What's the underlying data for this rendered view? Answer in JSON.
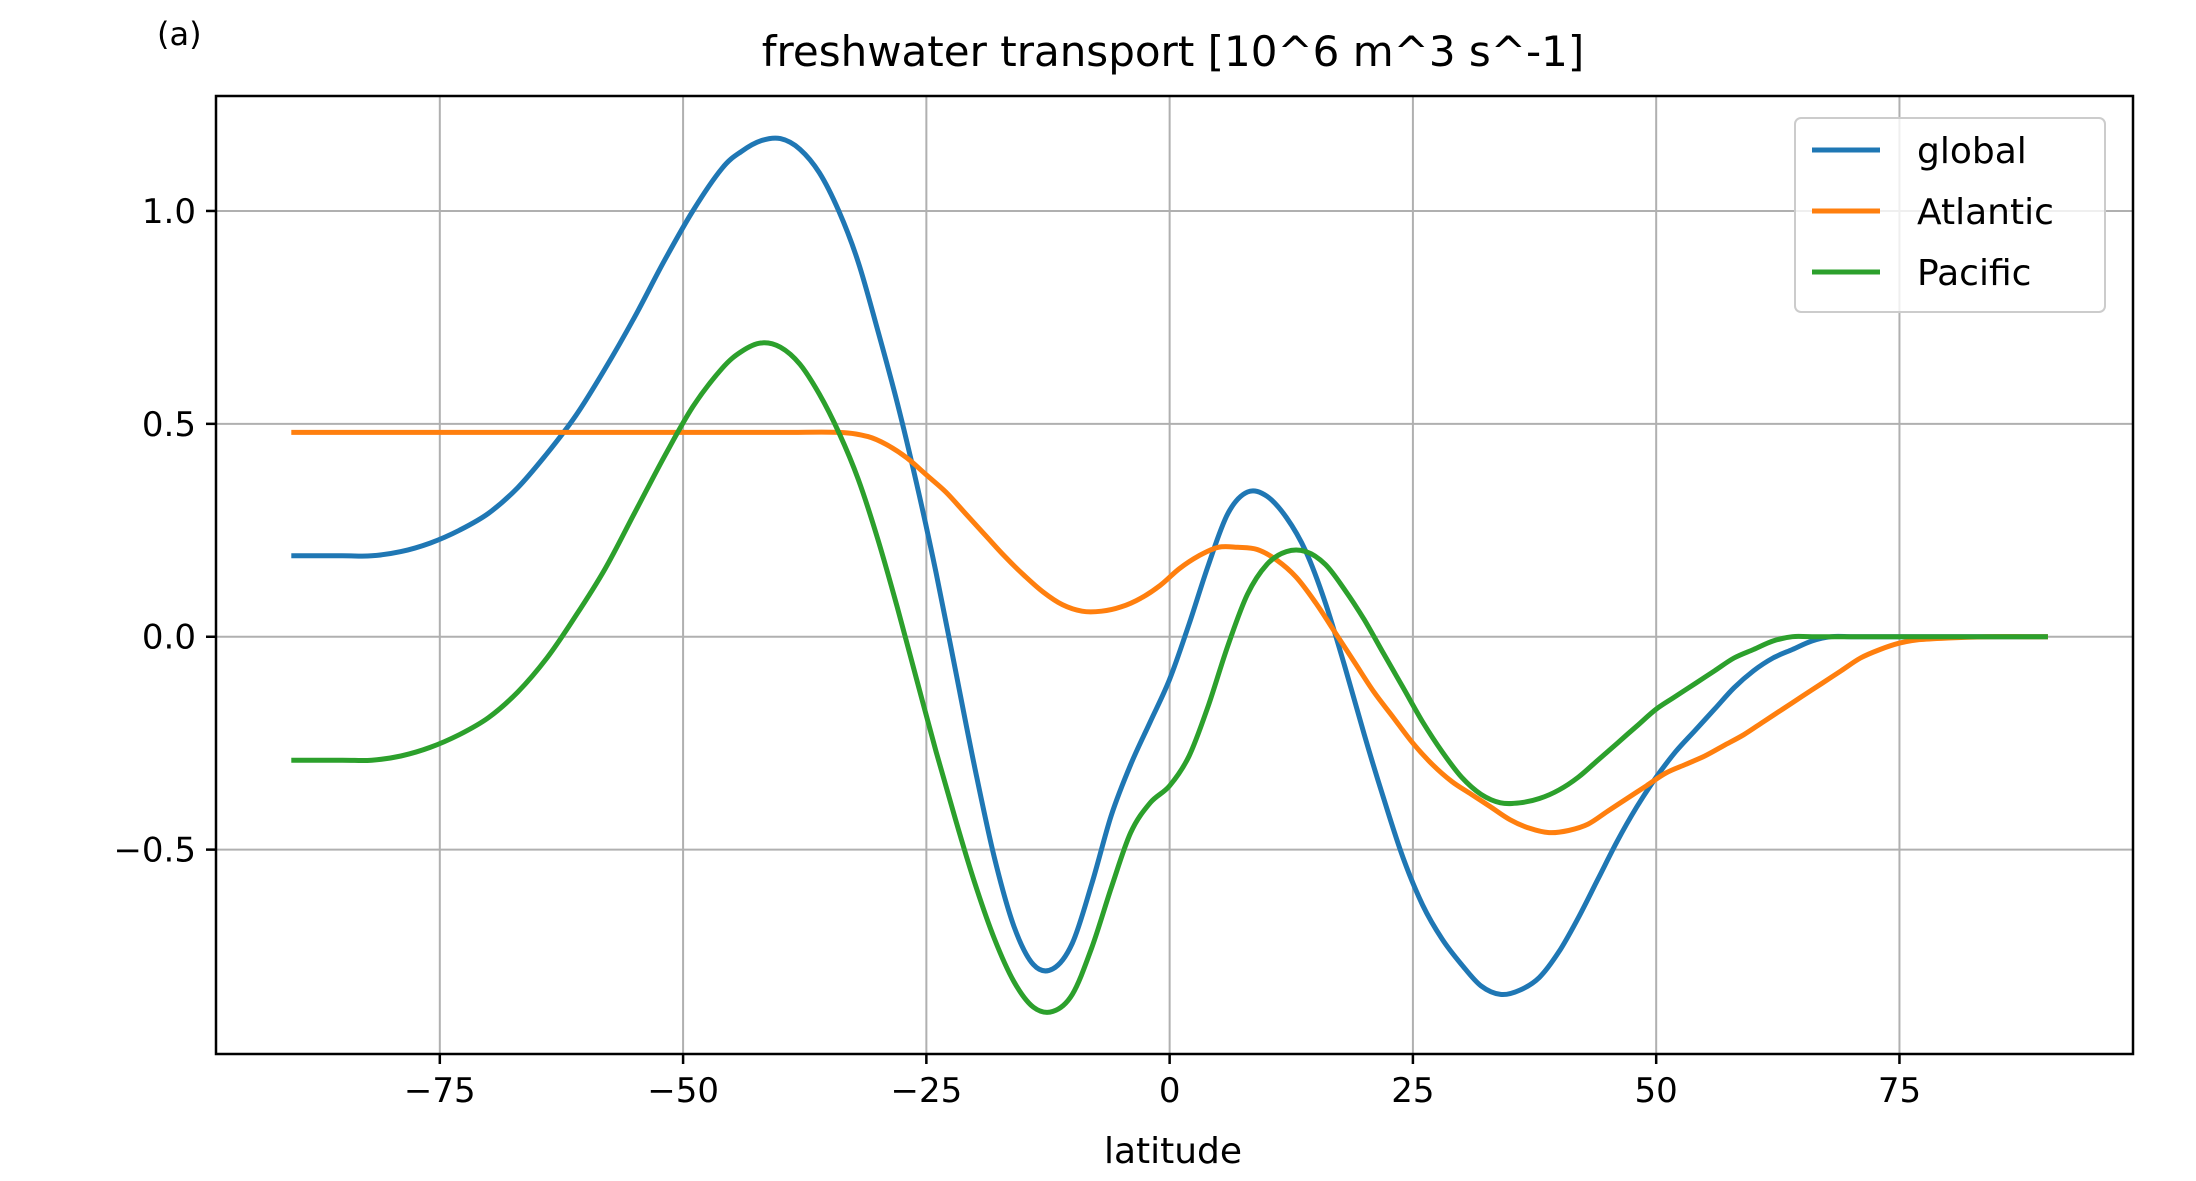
{
  "panel_label": "(a)",
  "chart_data": {
    "type": "line",
    "title": "freshwater transport [10^6 m^3 s^-1]",
    "xlabel": "latitude",
    "ylabel": "",
    "xlim": [
      -98,
      99
    ],
    "ylim": [
      -0.98,
      1.27
    ],
    "xticks": [
      -75,
      -50,
      -25,
      0,
      25,
      50,
      75
    ],
    "xtick_labels": [
      "−75",
      "−50",
      "−25",
      "0",
      "25",
      "50",
      "75"
    ],
    "yticks": [
      -0.5,
      0.0,
      0.5,
      1.0
    ],
    "ytick_labels": [
      "−0.5",
      "0.0",
      "0.5",
      "1.0"
    ],
    "grid": true,
    "legend_position": "top-right",
    "series": [
      {
        "name": "global",
        "color": "#1f77b4",
        "x": [
          -90,
          -85,
          -82,
          -79,
          -76,
          -73,
          -70,
          -67,
          -64,
          -61,
          -58,
          -55,
          -52,
          -49,
          -46,
          -44,
          -42,
          -40,
          -38,
          -36,
          -34,
          -32,
          -30,
          -28,
          -26,
          -24,
          -22,
          -20,
          -18,
          -16,
          -14,
          -12,
          -10,
          -8,
          -6,
          -4,
          -2,
          0,
          2,
          4,
          6,
          8,
          10,
          12,
          14,
          16,
          18,
          20,
          22,
          24,
          26,
          28,
          30,
          32,
          34,
          36,
          38,
          40,
          42,
          44,
          46,
          48,
          50,
          52,
          54,
          56,
          58,
          60,
          62,
          64,
          66,
          68,
          70,
          72,
          75,
          78,
          82,
          86,
          90
        ],
        "y": [
          0.19,
          0.19,
          0.19,
          0.2,
          0.22,
          0.25,
          0.29,
          0.35,
          0.43,
          0.52,
          0.63,
          0.75,
          0.88,
          1.0,
          1.1,
          1.14,
          1.165,
          1.17,
          1.145,
          1.09,
          1.0,
          0.88,
          0.72,
          0.55,
          0.36,
          0.15,
          -0.08,
          -0.31,
          -0.52,
          -0.68,
          -0.77,
          -0.78,
          -0.72,
          -0.58,
          -0.42,
          -0.3,
          -0.2,
          -0.1,
          0.03,
          0.17,
          0.29,
          0.34,
          0.33,
          0.28,
          0.2,
          0.08,
          -0.07,
          -0.23,
          -0.38,
          -0.52,
          -0.63,
          -0.71,
          -0.77,
          -0.82,
          -0.84,
          -0.83,
          -0.8,
          -0.74,
          -0.66,
          -0.57,
          -0.48,
          -0.4,
          -0.33,
          -0.27,
          -0.22,
          -0.17,
          -0.12,
          -0.08,
          -0.05,
          -0.03,
          -0.01,
          0.0,
          0.0,
          0.0,
          0.0,
          0.0,
          0.0,
          0.0,
          0.0
        ]
      },
      {
        "name": "Atlantic",
        "color": "#ff7f0e",
        "x": [
          -90,
          -80,
          -70,
          -60,
          -50,
          -40,
          -34,
          -31,
          -29,
          -27,
          -25,
          -23,
          -21,
          -19,
          -17,
          -15,
          -13,
          -11,
          -9,
          -7,
          -5,
          -3,
          -1,
          1,
          3,
          5,
          7,
          9,
          11,
          13,
          15,
          17,
          19,
          21,
          23,
          25,
          27,
          29,
          31,
          33,
          35,
          37,
          39,
          41,
          43,
          45,
          47,
          49,
          51,
          53,
          55,
          57,
          59,
          61,
          63,
          65,
          67,
          69,
          71,
          73,
          75,
          77,
          80,
          84,
          88,
          90
        ],
        "y": [
          0.48,
          0.48,
          0.48,
          0.48,
          0.48,
          0.48,
          0.48,
          0.47,
          0.45,
          0.42,
          0.38,
          0.34,
          0.29,
          0.24,
          0.19,
          0.145,
          0.105,
          0.075,
          0.06,
          0.06,
          0.07,
          0.09,
          0.12,
          0.16,
          0.19,
          0.21,
          0.21,
          0.205,
          0.18,
          0.14,
          0.08,
          0.01,
          -0.06,
          -0.13,
          -0.19,
          -0.25,
          -0.3,
          -0.34,
          -0.37,
          -0.4,
          -0.43,
          -0.45,
          -0.46,
          -0.455,
          -0.44,
          -0.41,
          -0.38,
          -0.35,
          -0.32,
          -0.3,
          -0.28,
          -0.255,
          -0.23,
          -0.2,
          -0.17,
          -0.14,
          -0.11,
          -0.08,
          -0.05,
          -0.03,
          -0.015,
          -0.007,
          -0.003,
          0.0,
          0.0,
          0.0
        ]
      },
      {
        "name": "Pacific",
        "color": "#2ca02c",
        "x": [
          -90,
          -85,
          -82,
          -79,
          -76,
          -73,
          -70,
          -67,
          -64,
          -61,
          -58,
          -55,
          -52,
          -49,
          -46,
          -44,
          -42,
          -40,
          -38,
          -36,
          -34,
          -32,
          -30,
          -28,
          -26,
          -24,
          -22,
          -20,
          -18,
          -16,
          -14,
          -12,
          -10,
          -8,
          -6,
          -4,
          -2,
          0,
          2,
          4,
          6,
          8,
          10,
          12,
          14,
          16,
          18,
          20,
          22,
          24,
          26,
          28,
          30,
          32,
          34,
          36,
          38,
          40,
          42,
          44,
          46,
          48,
          50,
          52,
          54,
          56,
          58,
          60,
          62,
          64,
          66,
          70,
          75,
          80,
          85,
          90
        ],
        "y": [
          -0.29,
          -0.29,
          -0.29,
          -0.28,
          -0.26,
          -0.23,
          -0.19,
          -0.13,
          -0.05,
          0.05,
          0.16,
          0.29,
          0.42,
          0.54,
          0.63,
          0.67,
          0.69,
          0.68,
          0.64,
          0.57,
          0.48,
          0.37,
          0.23,
          0.07,
          -0.1,
          -0.27,
          -0.43,
          -0.58,
          -0.71,
          -0.81,
          -0.87,
          -0.88,
          -0.84,
          -0.73,
          -0.59,
          -0.46,
          -0.39,
          -0.35,
          -0.28,
          -0.16,
          -0.02,
          0.1,
          0.17,
          0.2,
          0.2,
          0.17,
          0.11,
          0.04,
          -0.04,
          -0.12,
          -0.2,
          -0.27,
          -0.33,
          -0.37,
          -0.39,
          -0.39,
          -0.38,
          -0.36,
          -0.33,
          -0.29,
          -0.25,
          -0.21,
          -0.17,
          -0.14,
          -0.11,
          -0.08,
          -0.05,
          -0.03,
          -0.01,
          0.0,
          0.0,
          0.0,
          0.0,
          0.0,
          0.0,
          0.0
        ]
      }
    ]
  }
}
